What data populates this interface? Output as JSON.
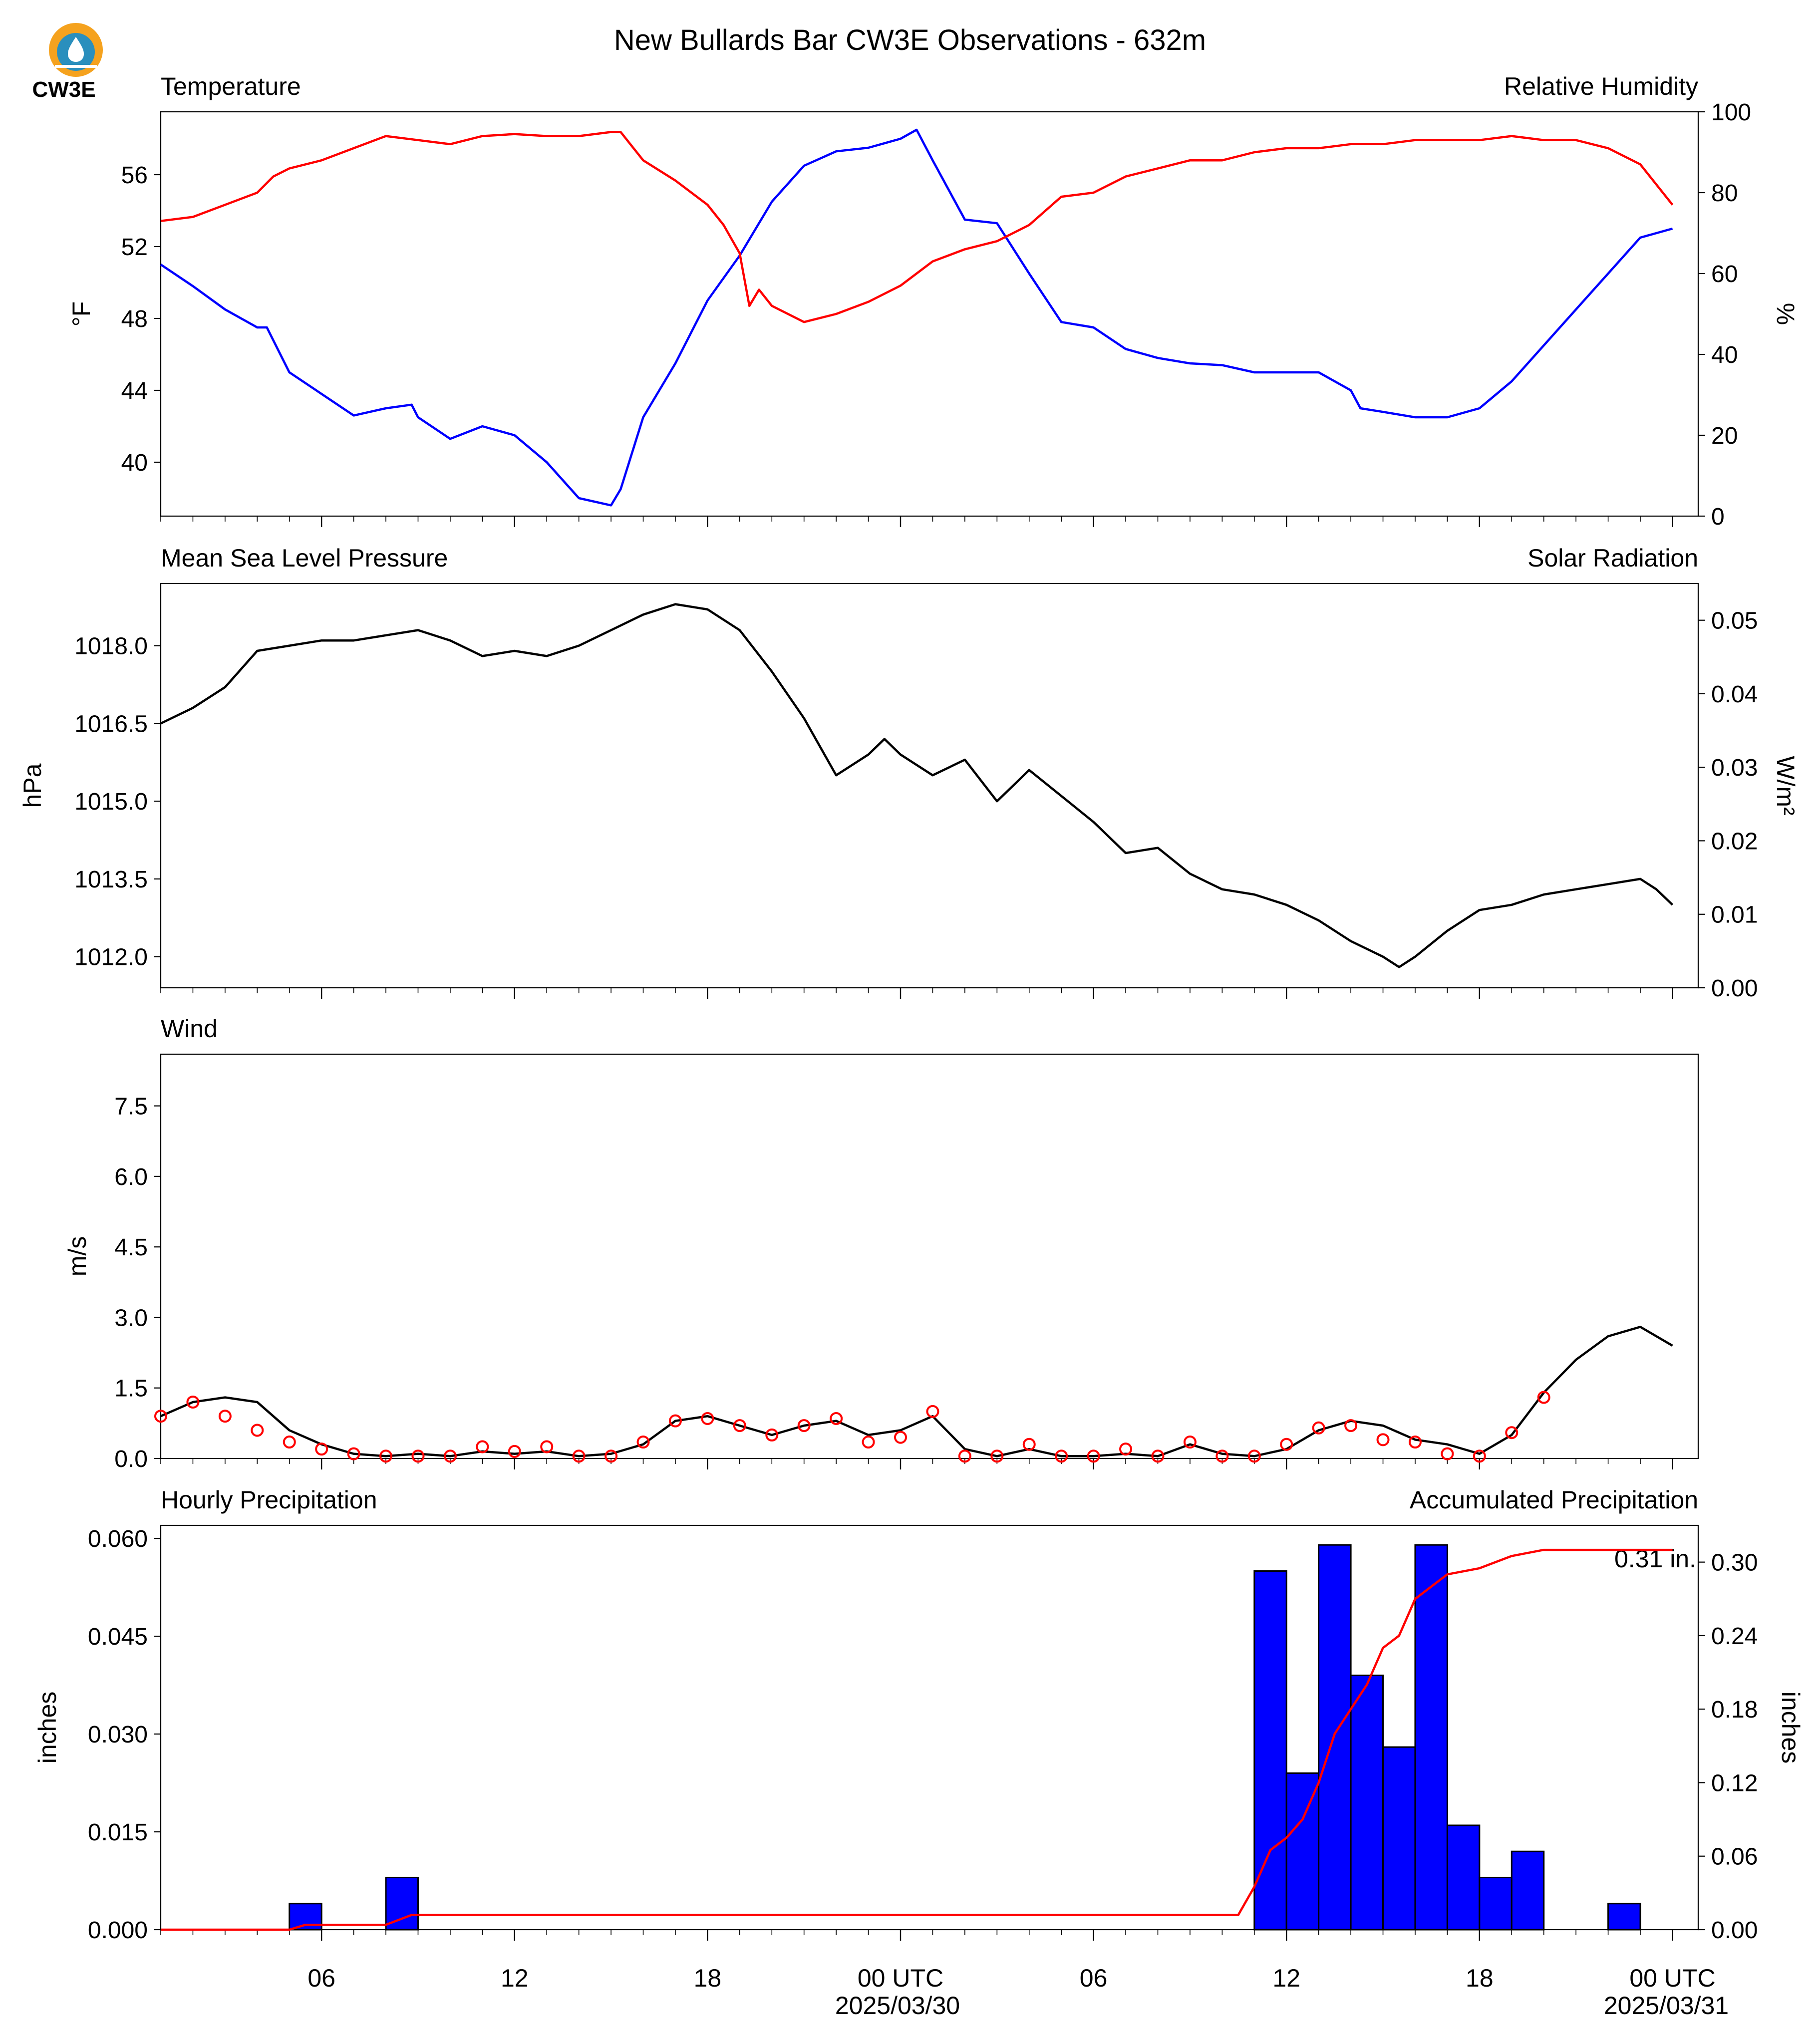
{
  "page_title": "New Bullards Bar CW3E Observations - 632m",
  "logo": {
    "text": "CW3E",
    "colors": {
      "orange": "#f5a21e",
      "blue": "#2a8fbd"
    }
  },
  "colors": {
    "temperature": "#0000ff",
    "humidity": "#ff0000",
    "pressure": "#000000",
    "solar": "#008000",
    "wind": "#000000",
    "gust_marker": "#ff0000",
    "precip_bar": "#0000ff",
    "accum": "#ff0000"
  },
  "time_axis": {
    "ticks": [
      "06",
      "12",
      "18",
      "00 UTC",
      "06",
      "12",
      "18",
      "00 UTC"
    ],
    "dates": [
      "2025/03/30",
      "2025/03/31"
    ]
  },
  "chart_data": [
    {
      "type": "line",
      "id": "temperature-humidity",
      "title_left": "Temperature",
      "title_right": "Relative Humidity",
      "ylabel_left": "°F",
      "ylabel_right": "%",
      "x_units": "hours since 2025/03/29 01 UTC (shown as UTC clock ticks)",
      "yticks_left": [
        40,
        44,
        48,
        52,
        56
      ],
      "ylim_left": [
        37.0,
        59.5
      ],
      "yticks_right": [
        0,
        20,
        40,
        60,
        80,
        100
      ],
      "ylim_right": [
        0,
        100
      ],
      "series": [
        {
          "name": "Temperature",
          "axis": "left",
          "color": "#0000ff",
          "x": [
            0,
            1,
            2,
            3,
            3.3,
            4,
            5,
            6,
            7,
            7.8,
            8,
            9,
            10,
            11,
            12,
            13,
            14,
            14.3,
            15,
            16,
            17,
            18,
            19,
            20,
            21,
            22,
            23,
            23.5,
            24,
            25,
            26,
            27,
            28,
            29,
            30,
            31,
            32,
            33,
            34,
            35,
            36,
            37,
            37.3,
            38,
            39,
            40,
            41,
            42,
            43,
            44,
            45,
            46,
            47
          ],
          "y": [
            51.0,
            49.8,
            48.5,
            47.5,
            47.5,
            45.0,
            43.8,
            42.6,
            43.0,
            43.2,
            42.5,
            41.3,
            42.0,
            41.5,
            40.0,
            38.0,
            37.6,
            38.5,
            42.5,
            45.5,
            49.0,
            51.5,
            54.5,
            56.5,
            57.3,
            57.5,
            58.0,
            58.5,
            56.8,
            53.5,
            53.3,
            50.5,
            47.8,
            47.5,
            46.3,
            45.8,
            45.5,
            45.4,
            45.0,
            45.0,
            45.0,
            44.0,
            43.0,
            42.8,
            42.5,
            42.5,
            43.0,
            44.5,
            46.5,
            48.5,
            50.5,
            52.5,
            53.0
          ]
        },
        {
          "name": "Relative Humidity",
          "axis": "right",
          "color": "#ff0000",
          "x": [
            0,
            1,
            2,
            3,
            3.5,
            4,
            5,
            6,
            7,
            8,
            9,
            10,
            11,
            12,
            13,
            14,
            14.3,
            15,
            16,
            17,
            17.5,
            18,
            18.3,
            18.6,
            19,
            20,
            21,
            22,
            23,
            24,
            25,
            26,
            27,
            28,
            29,
            30,
            31,
            32,
            33,
            34,
            35,
            36,
            37,
            38,
            39,
            40,
            41,
            42,
            43,
            44,
            45,
            46,
            47
          ],
          "y": [
            73,
            74,
            77,
            80,
            84,
            86,
            88,
            91,
            94,
            93,
            92,
            94,
            94.5,
            94,
            94,
            95,
            95,
            88,
            83,
            77,
            72,
            65,
            52,
            56,
            52,
            48,
            50,
            53,
            57,
            63,
            66,
            68,
            72,
            79,
            80,
            84,
            86,
            88,
            88,
            90,
            91,
            91,
            92,
            92,
            93,
            93,
            93,
            94,
            93,
            93,
            91,
            87,
            77
          ]
        }
      ]
    },
    {
      "type": "line",
      "id": "pressure-solar",
      "title_left": "Mean Sea Level Pressure",
      "title_right": "Solar Radiation",
      "ylabel_left": "hPa",
      "ylabel_right": "W/m²",
      "yticks_left": [
        1012.0,
        1013.5,
        1015.0,
        1016.5,
        1018.0
      ],
      "ylim_left": [
        1011.4,
        1019.2
      ],
      "yticks_right": [
        0.0,
        0.01,
        0.02,
        0.03,
        0.04,
        0.05
      ],
      "ylim_right": [
        0.0,
        0.055
      ],
      "series": [
        {
          "name": "Mean Sea Level Pressure",
          "axis": "left",
          "color": "#000000",
          "x": [
            0,
            1,
            2,
            3,
            4,
            5,
            6,
            7,
            8,
            9,
            10,
            11,
            12,
            13,
            14,
            15,
            16,
            17,
            18,
            19,
            20,
            21,
            22,
            22.5,
            23,
            24,
            25,
            26,
            27,
            28,
            29,
            30,
            31,
            32,
            33,
            34,
            35,
            36,
            37,
            38,
            38.5,
            39,
            40,
            41,
            42,
            43,
            44,
            45,
            46,
            46.5,
            47
          ],
          "y": [
            1016.5,
            1016.8,
            1017.2,
            1017.9,
            1018.0,
            1018.1,
            1018.1,
            1018.2,
            1018.3,
            1018.1,
            1017.8,
            1017.9,
            1017.8,
            1018.0,
            1018.3,
            1018.6,
            1018.8,
            1018.7,
            1018.3,
            1017.5,
            1016.6,
            1015.5,
            1015.9,
            1016.2,
            1015.9,
            1015.5,
            1015.8,
            1015.0,
            1015.6,
            1015.1,
            1014.6,
            1014.0,
            1014.1,
            1013.6,
            1013.3,
            1013.2,
            1013.0,
            1012.7,
            1012.3,
            1012.0,
            1011.8,
            1012.0,
            1012.5,
            1012.9,
            1013.0,
            1013.2,
            1013.3,
            1013.4,
            1013.5,
            1013.3,
            1013.0
          ]
        }
      ]
    },
    {
      "type": "line",
      "id": "wind",
      "title_left": "Wind",
      "ylabel_left": "m/s",
      "yticks_left": [
        0.0,
        1.5,
        3.0,
        4.5,
        6.0,
        7.5
      ],
      "ylim_left": [
        0.0,
        8.6
      ],
      "series": [
        {
          "name": "Wind",
          "axis": "left",
          "color": "#000000",
          "x": [
            0,
            1,
            2,
            3,
            4,
            5,
            6,
            7,
            8,
            9,
            10,
            11,
            12,
            13,
            14,
            15,
            16,
            17,
            18,
            19,
            20,
            21,
            22,
            23,
            24,
            25,
            26,
            27,
            28,
            29,
            30,
            31,
            32,
            33,
            34,
            35,
            36,
            37,
            38,
            39,
            40,
            41,
            42,
            43,
            44,
            45,
            46,
            47
          ],
          "y": [
            0.9,
            1.2,
            1.3,
            1.2,
            0.6,
            0.3,
            0.1,
            0.05,
            0.1,
            0.05,
            0.15,
            0.1,
            0.15,
            0.05,
            0.1,
            0.3,
            0.8,
            0.9,
            0.7,
            0.5,
            0.7,
            0.8,
            0.5,
            0.6,
            0.9,
            0.2,
            0.05,
            0.2,
            0.05,
            0.05,
            0.1,
            0.05,
            0.3,
            0.1,
            0.05,
            0.2,
            0.6,
            0.8,
            0.7,
            0.4,
            0.3,
            0.1,
            0.5,
            1.4,
            2.1,
            2.6,
            2.8,
            2.4
          ]
        },
        {
          "name": "Gust",
          "axis": "left",
          "color": "#ff0000",
          "marker": "circle",
          "x": [
            0,
            1,
            2,
            3,
            4,
            5,
            6,
            7,
            8,
            9,
            10,
            11,
            12,
            13,
            14,
            15,
            16,
            17,
            18,
            19,
            20,
            21,
            22,
            23,
            24,
            25,
            26,
            27,
            28,
            29,
            30,
            31,
            32,
            33,
            34,
            35,
            36,
            37,
            38,
            39,
            40,
            41,
            42,
            43
          ],
          "y": [
            0.9,
            1.2,
            0.9,
            0.6,
            0.35,
            0.2,
            0.1,
            0.05,
            0.05,
            0.05,
            0.25,
            0.15,
            0.25,
            0.05,
            0.05,
            0.35,
            0.8,
            0.85,
            0.7,
            0.5,
            0.7,
            0.85,
            0.35,
            0.45,
            1.0,
            0.05,
            0.05,
            0.3,
            0.05,
            0.05,
            0.2,
            0.05,
            0.35,
            0.05,
            0.05,
            0.3,
            0.65,
            0.7,
            0.4,
            0.35,
            0.1,
            0.05,
            0.55,
            1.3
          ]
        }
      ]
    },
    {
      "type": "bar",
      "id": "precipitation",
      "title_left": "Hourly Precipitation",
      "title_right": "Accumulated Precipitation",
      "ylabel_left": "inches",
      "ylabel_right": "inches",
      "yticks_left": [
        0.0,
        0.015,
        0.03,
        0.045,
        0.06
      ],
      "ylim_left": [
        0.0,
        0.062
      ],
      "yticks_right": [
        0.0,
        0.06,
        0.12,
        0.18,
        0.24,
        0.3
      ],
      "ylim_right": [
        0.0,
        0.33
      ],
      "annotation": "0.31 in.",
      "series": [
        {
          "name": "Hourly Precipitation",
          "axis": "left",
          "color": "#0000ff",
          "x": [
            4,
            7,
            34,
            35,
            36,
            37,
            38,
            39,
            40,
            41,
            42,
            43,
            45
          ],
          "y": [
            0.004,
            0.008,
            0.055,
            0.024,
            0.059,
            0.039,
            0.028,
            0.059,
            0.016,
            0.008,
            0.012,
            0.0,
            0.004
          ]
        },
        {
          "name": "Accumulated Precipitation",
          "axis": "right",
          "color": "#ff0000",
          "x": [
            0,
            4,
            4.5,
            7,
            7.8,
            8,
            33.5,
            34,
            34.5,
            35,
            35.5,
            36,
            36.5,
            37,
            37.5,
            38,
            38.5,
            39,
            39.5,
            40,
            41,
            42,
            43,
            44,
            45,
            46,
            47
          ],
          "y": [
            0.0,
            0.0,
            0.004,
            0.004,
            0.012,
            0.012,
            0.012,
            0.035,
            0.065,
            0.075,
            0.09,
            0.12,
            0.16,
            0.18,
            0.2,
            0.23,
            0.24,
            0.27,
            0.28,
            0.29,
            0.295,
            0.305,
            0.31,
            0.31,
            0.31,
            0.31,
            0.31
          ]
        }
      ]
    }
  ]
}
